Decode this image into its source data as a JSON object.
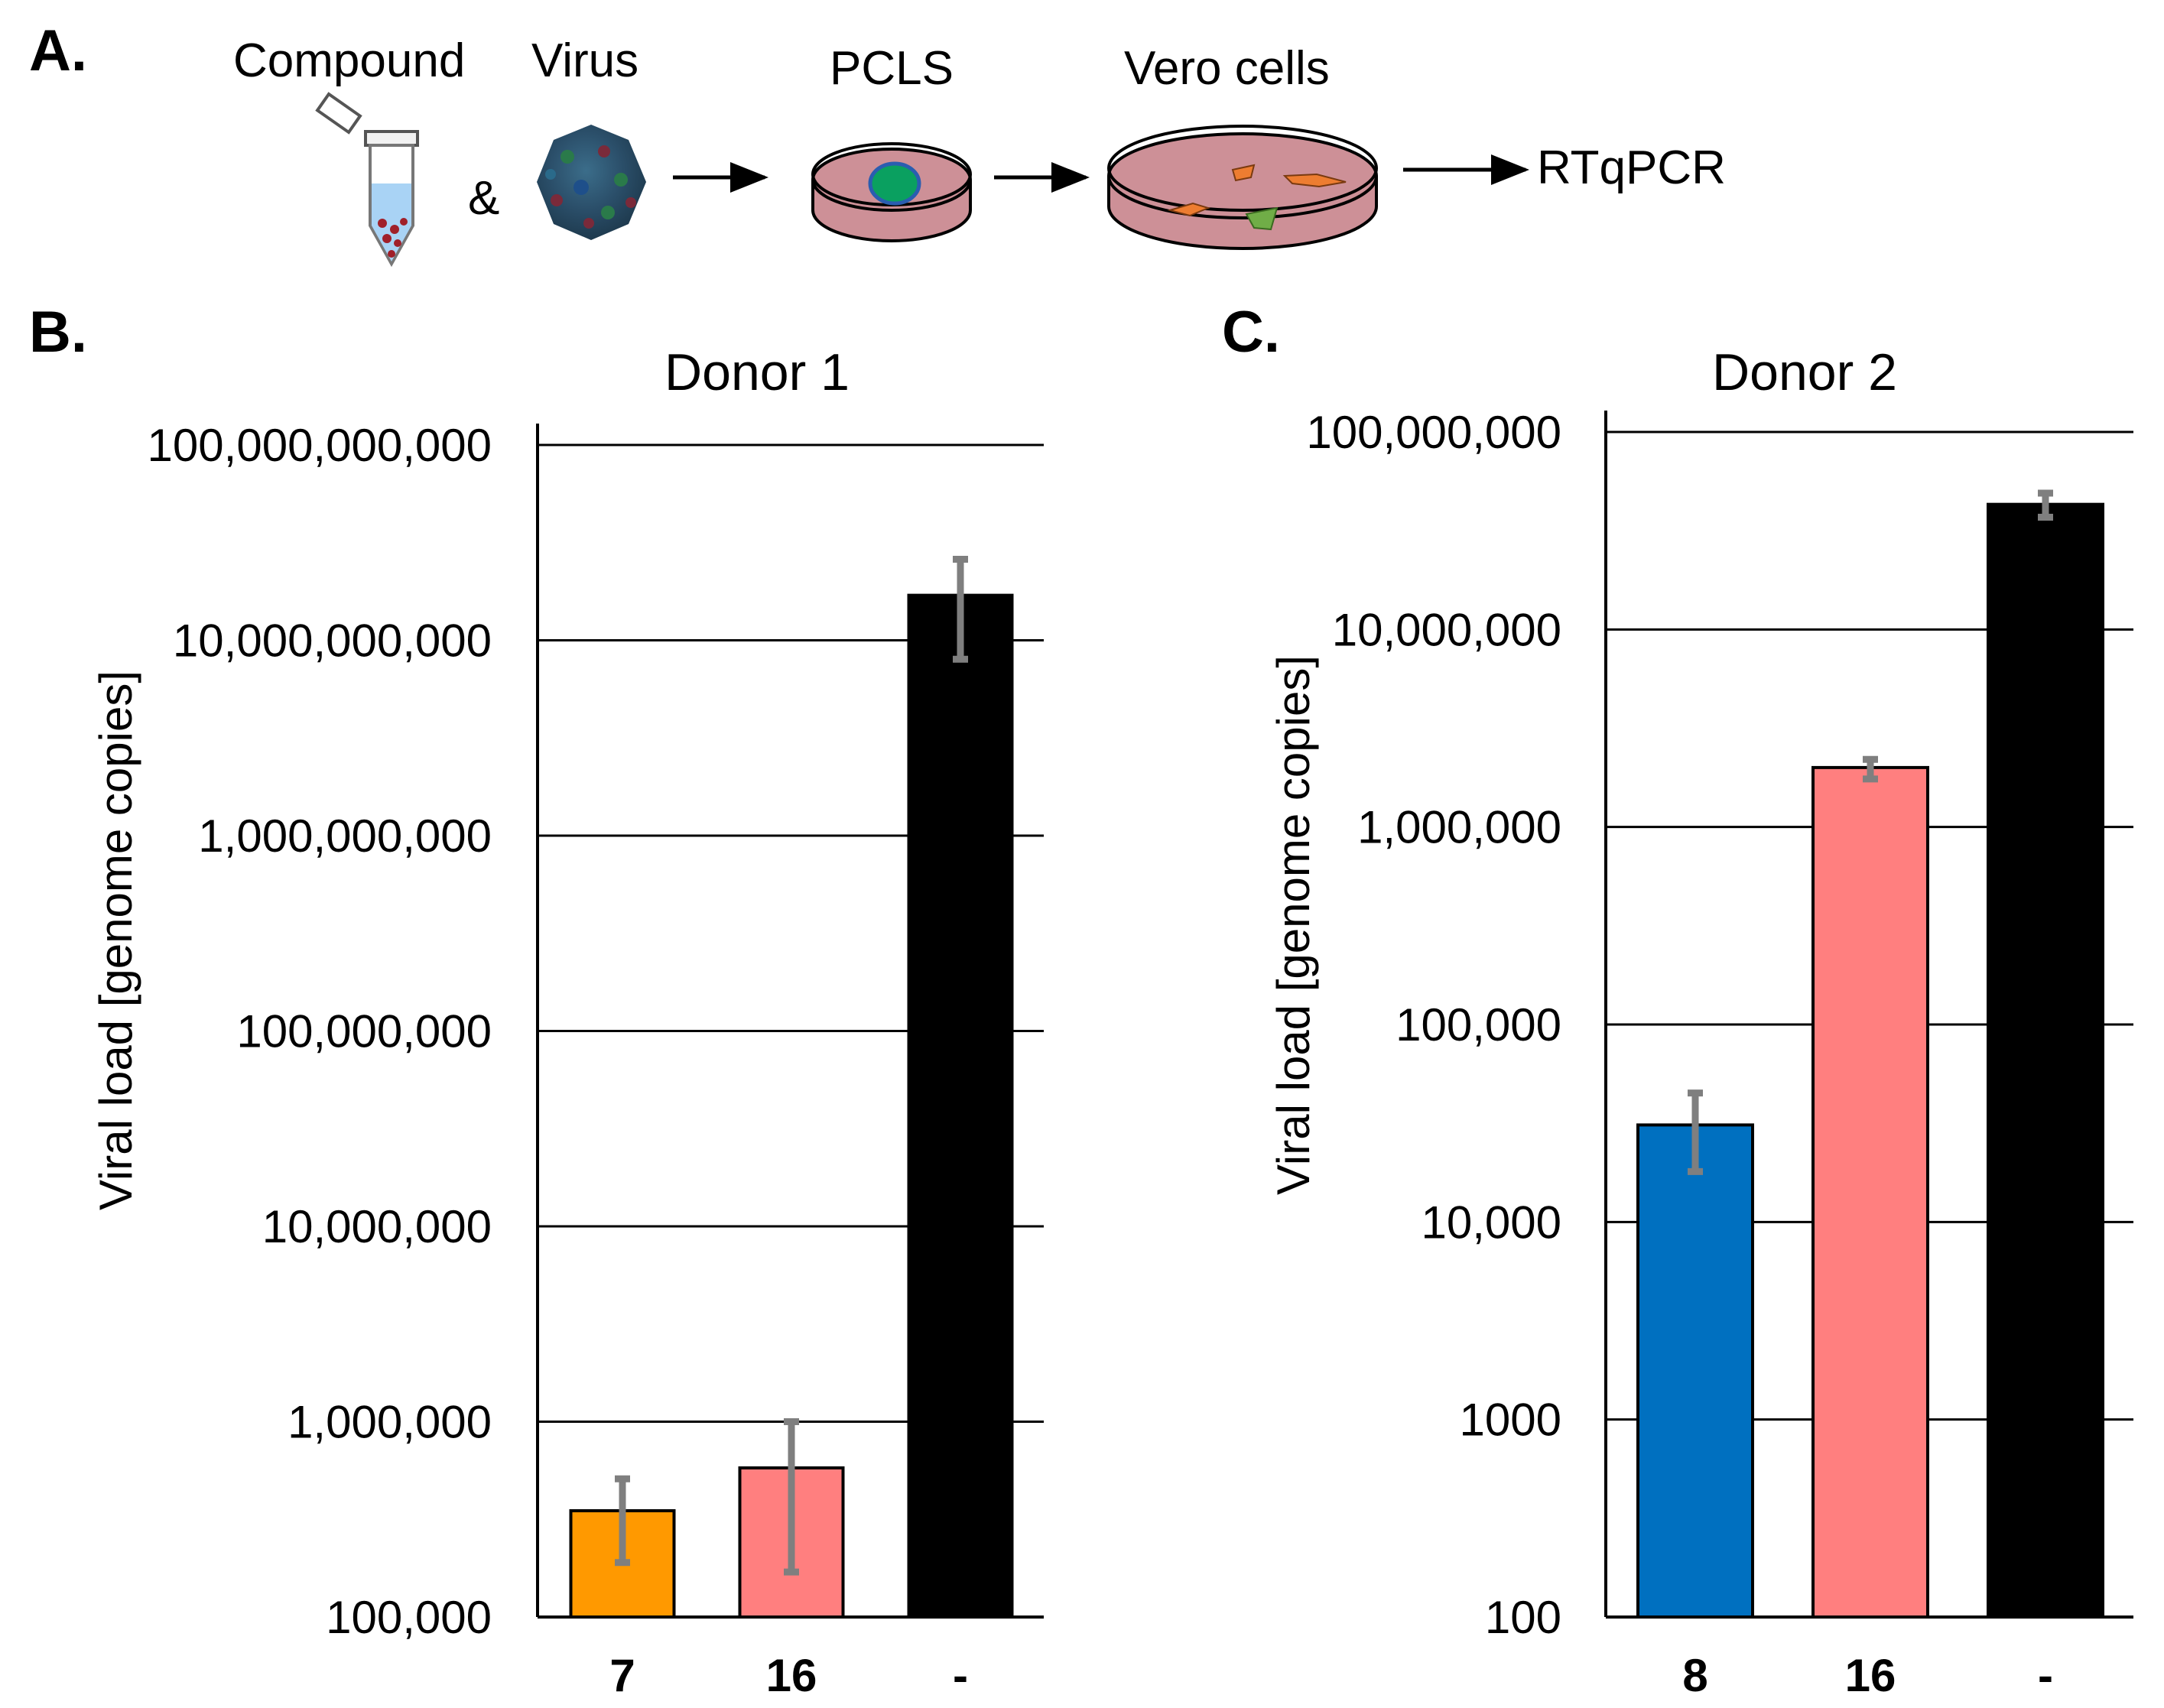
{
  "panels": {
    "a": "A.",
    "b": "B.",
    "c": "C."
  },
  "schematic": {
    "compound": "Compound",
    "virus": "Virus",
    "ampersand": "&",
    "pcls": "PCLS",
    "vero": "Vero cells",
    "rtqpcr": "RTqPCR"
  },
  "chart_data": [
    {
      "type": "bar",
      "title": "Donor 1",
      "ylabel": "Viral load [genome copies]",
      "xlabel": "",
      "yscale": "log",
      "ylim": [
        100000,
        100000000000
      ],
      "ytick_values": [
        100000,
        1000000,
        10000000,
        100000000,
        1000000000,
        10000000000,
        100000000000
      ],
      "ytick_labels": [
        "100,000",
        "1,000,000",
        "10,000,000",
        "100,000,000",
        "1,000,000,000",
        "10,000,000,000",
        "100,000,000,000"
      ],
      "categories": [
        "7",
        "16",
        "-"
      ],
      "values": [
        350000,
        580000,
        17000000000
      ],
      "error_low": [
        190000,
        170000,
        8000000000
      ],
      "error_high": [
        510000,
        1000000,
        26000000000
      ],
      "colors": [
        "#ff9900",
        "#ff7f7f",
        "#000000"
      ],
      "grid": true
    },
    {
      "type": "bar",
      "title": "Donor 2",
      "ylabel": "Viral load [genome copies]",
      "xlabel": "",
      "yscale": "log",
      "ylim": [
        100,
        100000000
      ],
      "ytick_values": [
        100,
        1000,
        10000,
        100000,
        1000000,
        10000000,
        100000000
      ],
      "ytick_labels": [
        "100",
        "1000",
        "10,000",
        "100,000",
        "1,000,000",
        "10,000,000",
        "100,000,000"
      ],
      "categories": [
        "8",
        "16",
        "-"
      ],
      "values": [
        31000,
        2000000,
        43000000
      ],
      "error_low": [
        18000,
        1750000,
        37000000
      ],
      "error_high": [
        45000,
        2200000,
        49000000
      ],
      "colors": [
        "#0070c0",
        "#ff7f7f",
        "#000000"
      ],
      "grid": true
    }
  ]
}
